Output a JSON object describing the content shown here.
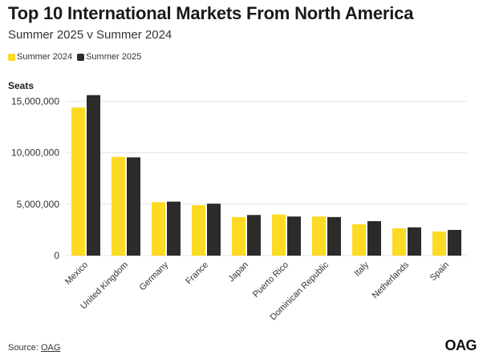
{
  "title": "Top 10 International Markets From North America",
  "subtitle": "Summer 2025 v Summer 2024",
  "source_label": "Source:",
  "source_link": "OAG",
  "logo_text": "OAG",
  "colors": {
    "summer_2024": "#FDDA24",
    "summer_2025": "#2B2B2B",
    "grid": "#e6e6e6"
  },
  "chart_data": {
    "type": "bar",
    "ylabel": "Seats",
    "ylim": [
      0,
      15500000
    ],
    "yticks": [
      0,
      5000000,
      10000000,
      15000000
    ],
    "ytick_labels": [
      "0",
      "5,000,000",
      "10,000,000",
      "15,000,000"
    ],
    "categories": [
      "Mexico",
      "United Kingdom",
      "Germany",
      "France",
      "Japan",
      "Puerto Rico",
      "Dominican Republic",
      "Italy",
      "Netherlands",
      "Spain"
    ],
    "series": [
      {
        "name": "Summer 2024",
        "values": [
          14400000,
          9600000,
          5200000,
          4900000,
          3750000,
          4000000,
          3800000,
          3050000,
          2650000,
          2350000
        ]
      },
      {
        "name": "Summer 2025",
        "values": [
          15600000,
          9550000,
          5250000,
          5050000,
          3950000,
          3800000,
          3750000,
          3350000,
          2750000,
          2500000
        ]
      }
    ]
  }
}
